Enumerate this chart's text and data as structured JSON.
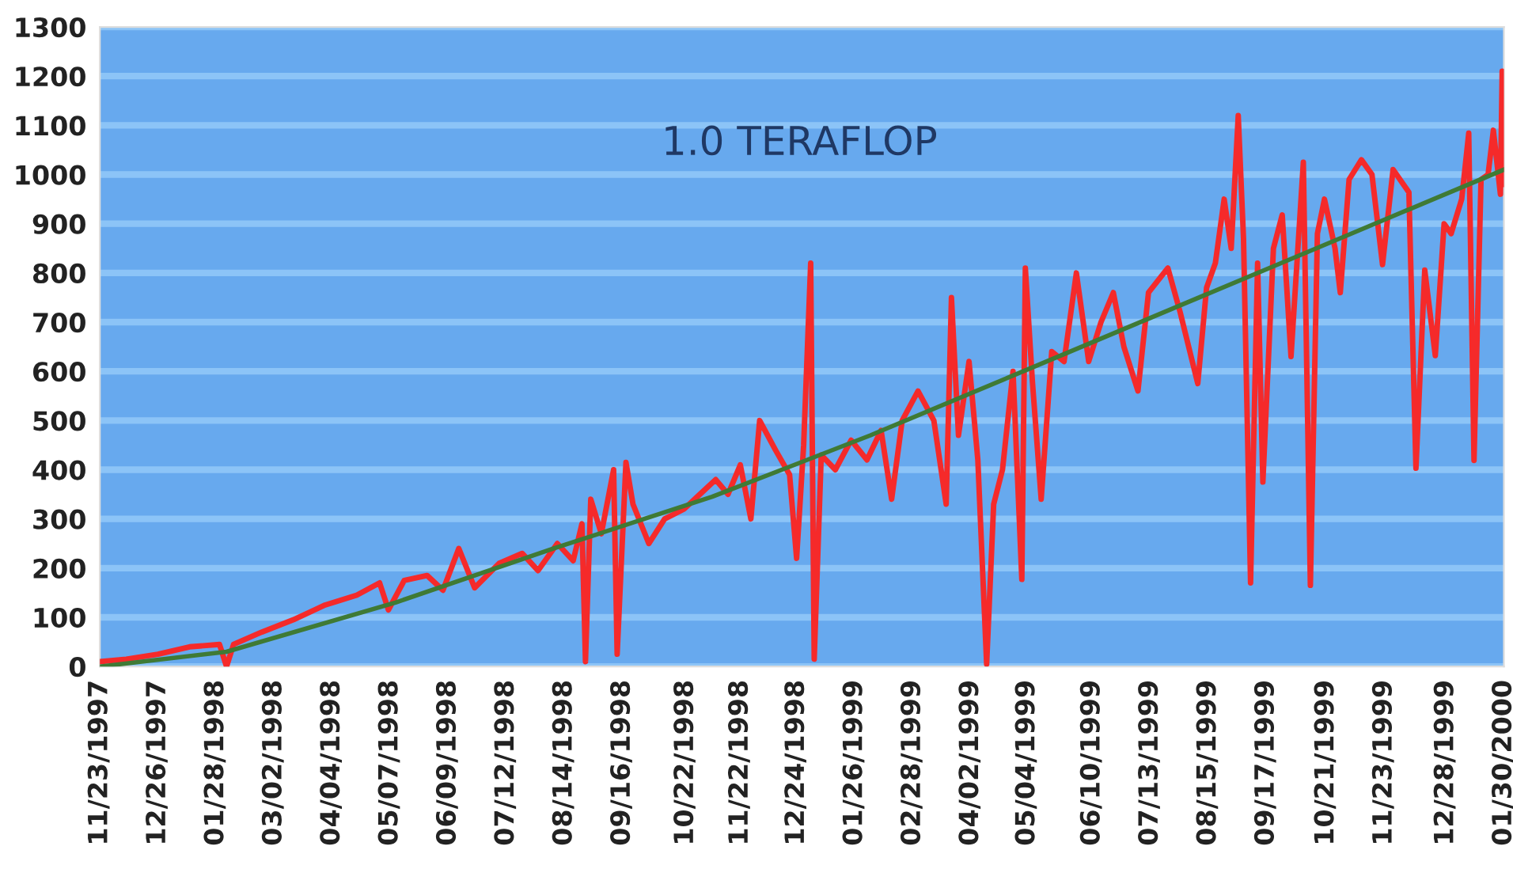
{
  "chart_data": {
    "type": "line",
    "annotations": [
      "1.0 TERAFLOP"
    ],
    "xlim": [
      "1997-11-23",
      "2000-01-30"
    ],
    "xticks": [
      {
        "value": "1997-11-23",
        "label": "11/23/1997"
      },
      {
        "value": "1997-12-26",
        "label": "12/26/1997"
      },
      {
        "value": "1998-01-28",
        "label": "01/28/1998"
      },
      {
        "value": "1998-03-02",
        "label": "03/02/1998"
      },
      {
        "value": "1998-04-04",
        "label": "04/04/1998"
      },
      {
        "value": "1998-05-07",
        "label": "05/07/1998"
      },
      {
        "value": "1998-06-09",
        "label": "06/09/1998"
      },
      {
        "value": "1998-07-12",
        "label": "07/12/1998"
      },
      {
        "value": "1998-08-14",
        "label": "08/14/1998"
      },
      {
        "value": "1998-09-16",
        "label": "09/16/1998"
      },
      {
        "value": "1998-10-22",
        "label": "10/22/1998"
      },
      {
        "value": "1998-11-22",
        "label": "11/22/1998"
      },
      {
        "value": "1998-12-24",
        "label": "12/24/1998"
      },
      {
        "value": "1999-01-26",
        "label": "01/26/1999"
      },
      {
        "value": "1999-02-28",
        "label": "02/28/1999"
      },
      {
        "value": "1999-04-02",
        "label": "04/02/1999"
      },
      {
        "value": "1999-05-04",
        "label": "05/04/1999"
      },
      {
        "value": "1999-06-10",
        "label": "06/10/1999"
      },
      {
        "value": "1999-07-13",
        "label": "07/13/1999"
      },
      {
        "value": "1999-08-15",
        "label": "08/15/1999"
      },
      {
        "value": "1999-09-17",
        "label": "09/17/1999"
      },
      {
        "value": "1999-10-21",
        "label": "10/21/1999"
      },
      {
        "value": "1999-11-23",
        "label": "11/23/1999"
      },
      {
        "value": "1999-12-28",
        "label": "12/28/1999"
      },
      {
        "value": "2000-01-30",
        "label": "01/30/2000"
      }
    ],
    "ylim": [
      0,
      1300
    ],
    "yticks": [
      0,
      100,
      200,
      300,
      400,
      500,
      600,
      700,
      800,
      900,
      1000,
      1100,
      1200,
      1300
    ],
    "grid": "y",
    "marker": "none",
    "line_style": "solid",
    "series": [
      {
        "color": "#f52a2a",
        "x": [
          "1997-11-23",
          "1997-12-08",
          "1997-12-26",
          "1998-01-13",
          "1998-01-30",
          "1998-02-03",
          "1998-02-07",
          "1998-02-23",
          "1998-03-13",
          "1998-03-31",
          "1998-04-18",
          "1998-05-01",
          "1998-05-06",
          "1998-05-15",
          "1998-05-28",
          "1998-06-06",
          "1998-06-15",
          "1998-06-24",
          "1998-07-08",
          "1998-07-21",
          "1998-07-30",
          "1998-08-10",
          "1998-08-19",
          "1998-08-24",
          "1998-08-26",
          "1998-08-29",
          "1998-09-04",
          "1998-09-11",
          "1998-09-13",
          "1998-09-18",
          "1998-09-22",
          "1998-10-01",
          "1998-10-10",
          "1998-10-21",
          "1998-10-30",
          "1998-11-08",
          "1998-11-15",
          "1998-11-22",
          "1998-11-28",
          "1998-12-03",
          "1998-12-12",
          "1998-12-20",
          "1998-12-24",
          "1998-12-28",
          "1999-01-01",
          "1999-01-03",
          "1999-01-07",
          "1999-01-15",
          "1999-01-24",
          "1999-02-02",
          "1999-02-10",
          "1999-02-16",
          "1999-02-22",
          "1999-03-03",
          "1999-03-12",
          "1999-03-19",
          "1999-03-22",
          "1999-03-26",
          "1999-04-01",
          "1999-04-06",
          "1999-04-11",
          "1999-04-15",
          "1999-04-20",
          "1999-04-26",
          "1999-05-01",
          "1999-05-03",
          "1999-05-07",
          "1999-05-12",
          "1999-05-18",
          "1999-05-25",
          "1999-06-01",
          "1999-06-08",
          "1999-06-15",
          "1999-06-22",
          "1999-06-28",
          "1999-07-06",
          "1999-07-12",
          "1999-07-23",
          "1999-07-30",
          "1999-08-09",
          "1999-08-14",
          "1999-08-19",
          "1999-08-24",
          "1999-08-28",
          "1999-09-01",
          "1999-09-04",
          "1999-09-08",
          "1999-09-12",
          "1999-09-15",
          "1999-09-21",
          "1999-09-26",
          "1999-10-01",
          "1999-10-08",
          "1999-10-12",
          "1999-10-16",
          "1999-10-20",
          "1999-10-26",
          "1999-10-29",
          "1999-11-03",
          "1999-11-10",
          "1999-11-16",
          "1999-11-22",
          "1999-11-28",
          "1999-12-07",
          "1999-12-11",
          "1999-12-16",
          "1999-12-22",
          "1999-12-27",
          "1999-12-31",
          "2000-01-06",
          "2000-01-10",
          "2000-01-13",
          "2000-01-17",
          "2000-01-21",
          "2000-01-24",
          "2000-01-28",
          "2000-01-29",
          "2000-01-30"
        ],
        "values": [
          10,
          15,
          25,
          40,
          45,
          0,
          45,
          70,
          95,
          125,
          145,
          170,
          115,
          175,
          185,
          155,
          240,
          160,
          210,
          230,
          195,
          250,
          215,
          290,
          10,
          340,
          270,
          400,
          25,
          415,
          330,
          250,
          300,
          320,
          350,
          380,
          350,
          410,
          300,
          500,
          440,
          390,
          220,
          450,
          820,
          15,
          430,
          400,
          460,
          420,
          480,
          340,
          500,
          560,
          500,
          330,
          750,
          470,
          620,
          420,
          5,
          330,
          400,
          600,
          177,
          810,
          580,
          340,
          640,
          620,
          800,
          620,
          700,
          760,
          650,
          560,
          760,
          810,
          720,
          575,
          770,
          820,
          950,
          850,
          1120,
          870,
          170,
          820,
          375,
          850,
          918,
          630,
          1025,
          165,
          880,
          950,
          850,
          760,
          990,
          1030,
          1000,
          817,
          1010,
          964,
          403,
          806,
          632,
          900,
          880,
          950,
          1084,
          419,
          990,
          1000,
          1090,
          960,
          1210,
          980
        ]
      },
      {
        "color": "#3f7a35",
        "x": [
          "1997-11-23",
          "1998-02-03",
          "1998-05-10",
          "1998-08-08",
          "1998-11-06",
          "1999-02-04",
          "1999-05-05",
          "1999-08-03",
          "1999-11-01",
          "2000-01-30"
        ],
        "values": [
          0,
          30,
          130,
          240,
          345,
          470,
          605,
          740,
          875,
          1010
        ]
      }
    ]
  }
}
